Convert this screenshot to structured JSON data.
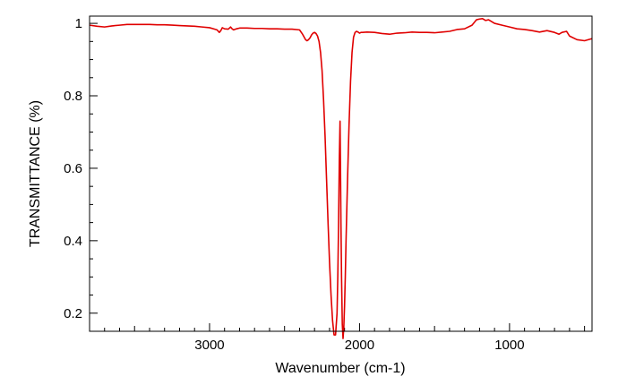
{
  "chart_data": {
    "type": "line",
    "title": "",
    "xlabel": "Wavenumber (cm-1)",
    "ylabel": "TRANSMITTANCE (%)",
    "xlim": [
      3800,
      450
    ],
    "ylim": [
      0.15,
      1.02
    ],
    "x_reversed": true,
    "grid": false,
    "legend": "none",
    "xticks": [
      3000,
      2000,
      1000
    ],
    "yticks": [
      0.2,
      0.4,
      0.6,
      0.8,
      1
    ],
    "xtick_labels": [
      "3000",
      "2000",
      "1000"
    ],
    "ytick_labels": [
      "0.2",
      "0.4",
      "0.6",
      "0.8",
      "1"
    ],
    "series": [
      {
        "color": "#e00000",
        "x": [
          3800,
          3750,
          3700,
          3650,
          3600,
          3550,
          3500,
          3450,
          3400,
          3350,
          3300,
          3250,
          3200,
          3150,
          3100,
          3050,
          3000,
          2975,
          2950,
          2935,
          2925,
          2915,
          2900,
          2875,
          2860,
          2850,
          2840,
          2820,
          2800,
          2750,
          2700,
          2650,
          2600,
          2550,
          2500,
          2450,
          2400,
          2380,
          2360,
          2350,
          2340,
          2330,
          2320,
          2310,
          2300,
          2290,
          2280,
          2270,
          2260,
          2250,
          2240,
          2230,
          2220,
          2210,
          2200,
          2190,
          2180,
          2170,
          2160,
          2150,
          2145,
          2140,
          2135,
          2130,
          2127,
          2124,
          2120,
          2115,
          2110,
          2105,
          2100,
          2095,
          2090,
          2080,
          2070,
          2060,
          2050,
          2040,
          2030,
          2020,
          2010,
          2000,
          1990,
          1980,
          1950,
          1900,
          1850,
          1800,
          1750,
          1700,
          1650,
          1600,
          1550,
          1500,
          1450,
          1400,
          1350,
          1300,
          1250,
          1220,
          1200,
          1180,
          1160,
          1140,
          1120,
          1100,
          1050,
          1000,
          950,
          900,
          850,
          800,
          750,
          700,
          670,
          650,
          620,
          600,
          550,
          500,
          450
        ],
        "y": [
          0.995,
          0.992,
          0.99,
          0.993,
          0.995,
          0.997,
          0.997,
          0.997,
          0.997,
          0.996,
          0.996,
          0.995,
          0.994,
          0.993,
          0.992,
          0.99,
          0.988,
          0.985,
          0.982,
          0.975,
          0.98,
          0.988,
          0.985,
          0.984,
          0.99,
          0.985,
          0.982,
          0.985,
          0.987,
          0.987,
          0.986,
          0.986,
          0.985,
          0.985,
          0.984,
          0.984,
          0.982,
          0.97,
          0.955,
          0.952,
          0.955,
          0.96,
          0.968,
          0.973,
          0.975,
          0.972,
          0.965,
          0.95,
          0.92,
          0.87,
          0.79,
          0.69,
          0.57,
          0.45,
          0.34,
          0.25,
          0.18,
          0.14,
          0.14,
          0.2,
          0.3,
          0.44,
          0.62,
          0.73,
          0.6,
          0.45,
          0.3,
          0.17,
          0.13,
          0.16,
          0.22,
          0.3,
          0.4,
          0.57,
          0.72,
          0.84,
          0.92,
          0.962,
          0.975,
          0.978,
          0.976,
          0.973,
          0.975,
          0.975,
          0.976,
          0.975,
          0.972,
          0.97,
          0.973,
          0.974,
          0.976,
          0.975,
          0.975,
          0.974,
          0.976,
          0.978,
          0.983,
          0.985,
          0.995,
          1.01,
          1.012,
          1.013,
          1.008,
          1.01,
          1.005,
          1.0,
          0.995,
          0.99,
          0.985,
          0.983,
          0.98,
          0.976,
          0.98,
          0.975,
          0.97,
          0.975,
          0.978,
          0.965,
          0.955,
          0.952,
          0.958
        ]
      }
    ]
  }
}
